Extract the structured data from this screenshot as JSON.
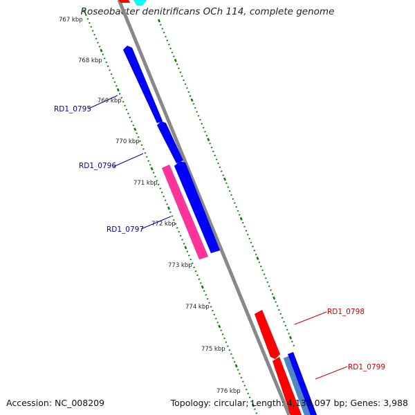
{
  "title": "Roseobacter denitrificans OCh 114, complete genome",
  "accession_text": "Accession: NC_008209",
  "summary_text": "Topology: circular; Length: 4,133,097 bp; Genes: 3,988",
  "colors": {
    "forward_gene": "#0000ff",
    "reverse_gene": "#ff0000",
    "rna_gene": "#ff3399",
    "backbone": "#888888",
    "tick": "#008000",
    "label_forward": "#000099",
    "label_reverse": "#cc0000",
    "light_gene": "#4f86c6",
    "cyan_gene": "#00ffff"
  },
  "ticks": [
    "767 kbp",
    "768 kbp",
    "769 kbp",
    "770 kbp",
    "771 kbp",
    "772 kbp",
    "773 kbp",
    "774 kbp",
    "775 kbp",
    "776 kbp"
  ],
  "gene_labels": [
    {
      "text": "RD1_0795",
      "strand": "forward"
    },
    {
      "text": "RD1_0796",
      "strand": "forward"
    },
    {
      "text": "RD1_0797",
      "strand": "forward"
    },
    {
      "text": "RD1_0798",
      "strand": "reverse"
    },
    {
      "text": "RD1_0799",
      "strand": "reverse"
    }
  ]
}
